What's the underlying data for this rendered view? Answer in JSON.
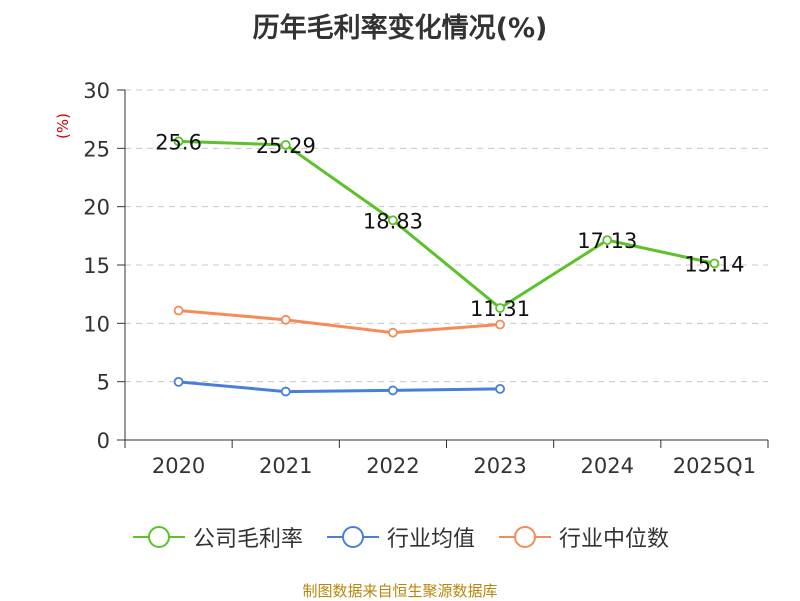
{
  "title": "历年毛利率变化情况(%)",
  "source": "制图数据来自恒生聚源数据库",
  "chart_data": {
    "type": "line",
    "title": "历年毛利率变化情况(%)",
    "ylabel": "(%)",
    "xlabel": "",
    "categories": [
      "2020",
      "2021",
      "2022",
      "2023",
      "2024",
      "2025Q1"
    ],
    "ylim": [
      0,
      30
    ],
    "yticks": [
      0,
      5,
      10,
      15,
      20,
      25,
      30
    ],
    "grid": true,
    "legend_position": "bottom",
    "series": [
      {
        "name": "公司毛利率",
        "color": "#5cc229",
        "values": [
          25.6,
          25.29,
          18.83,
          11.31,
          17.13,
          15.14
        ],
        "labels": [
          "25.6",
          "25.29",
          "18.83",
          "11.31",
          "17.13",
          "15.14"
        ]
      },
      {
        "name": "行业均值",
        "color": "#4a7fd9",
        "values": [
          4.98,
          4.15,
          4.25,
          4.38,
          null,
          null
        ]
      },
      {
        "name": "行业中位数",
        "color": "#f48c5a",
        "values": [
          11.1,
          10.3,
          9.2,
          9.9,
          null,
          null
        ]
      }
    ]
  }
}
